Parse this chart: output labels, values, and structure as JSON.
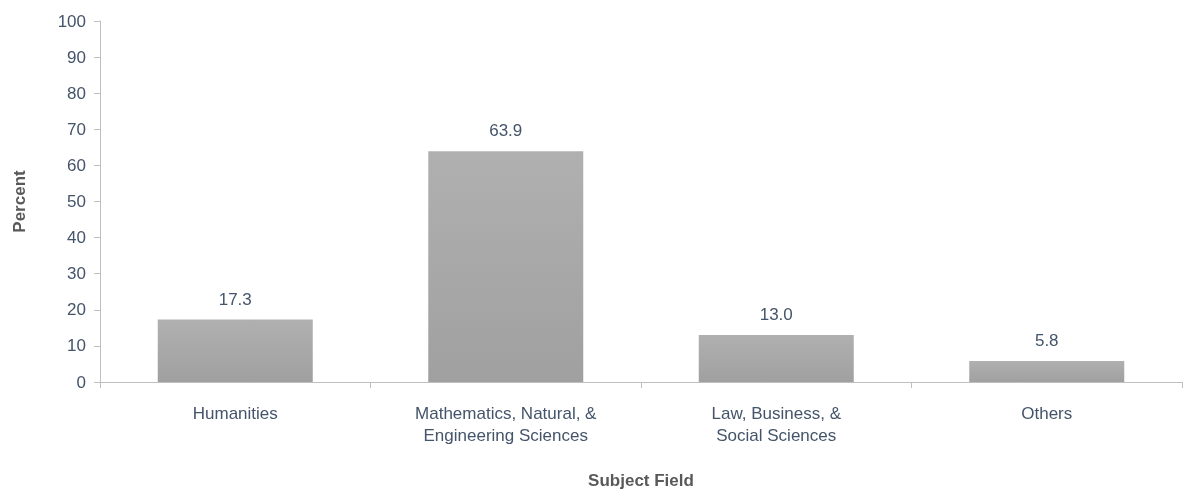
{
  "chart_data": {
    "type": "bar",
    "xlabel": "Subject Field",
    "ylabel": "Percent",
    "categories": [
      "Humanities",
      "Mathematics, Natural, &\nEngineering Sciences",
      "Law, Business, &\nSocial Sciences",
      "Others"
    ],
    "values": [
      17.3,
      63.9,
      13.0,
      5.8
    ],
    "value_labels": [
      "17.3",
      "63.9",
      "13.0",
      "5.8"
    ],
    "color": "#a0a0a0",
    "ylim": [
      0,
      100
    ],
    "yticks": [
      0,
      10,
      20,
      30,
      40,
      50,
      60,
      70,
      80,
      90,
      100
    ],
    "grid": false
  }
}
